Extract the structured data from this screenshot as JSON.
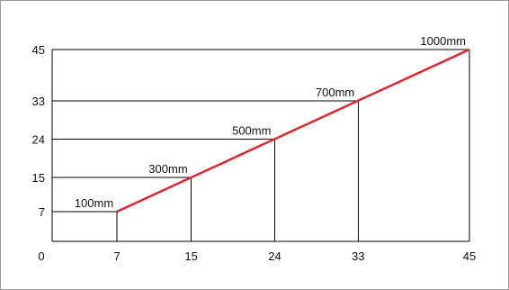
{
  "chart_data": {
    "type": "line",
    "x": [
      7,
      15,
      24,
      33,
      45
    ],
    "y": [
      7,
      15,
      24,
      33,
      45
    ],
    "point_labels": [
      "100mm",
      "300mm",
      "500mm",
      "700mm",
      "1000mm"
    ],
    "x_ticks": [
      "0",
      "7",
      "15",
      "24",
      "33",
      "45"
    ],
    "y_ticks": [
      "7",
      "15",
      "24",
      "33",
      "45"
    ],
    "xlim": [
      0,
      45
    ],
    "ylim": [
      0,
      45
    ],
    "grid": false,
    "line_color": "#d9282f",
    "title": "",
    "xlabel": "",
    "ylabel": ""
  }
}
